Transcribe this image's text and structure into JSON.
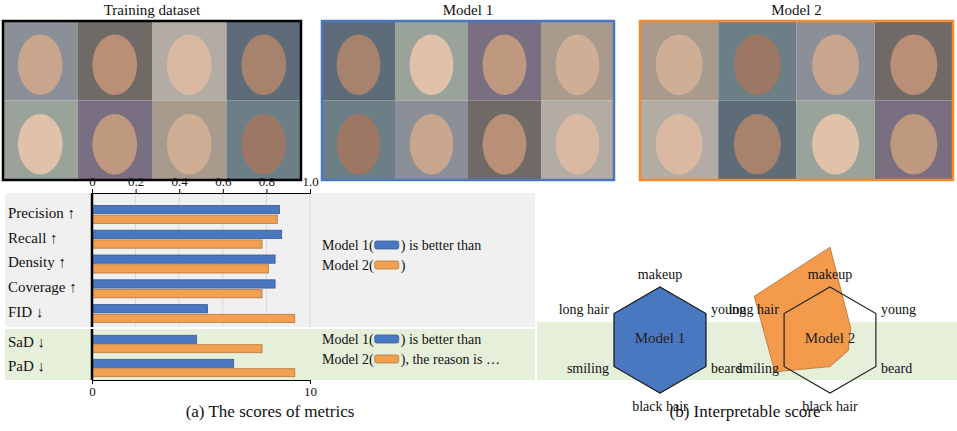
{
  "panels": [
    {
      "title": "Training dataset",
      "color": "#000000"
    },
    {
      "title": "Model 1",
      "color": "#4a78c0"
    },
    {
      "title": "Model 2",
      "color": "#f28a2e"
    }
  ],
  "chart_data": [
    {
      "type": "bar",
      "orientation": "horizontal",
      "categories": [
        "Precision ↑",
        "Recall ↑",
        "Density ↑",
        "Coverage ↑",
        "FID ↓"
      ],
      "series": [
        {
          "name": "Model 1",
          "color": "#4a78c0",
          "values": [
            0.86,
            0.87,
            0.84,
            0.84,
            0.53
          ]
        },
        {
          "name": "Model 2",
          "color": "#f0a050",
          "values": [
            0.85,
            0.78,
            0.81,
            0.78,
            0.93
          ]
        }
      ],
      "xlim": [
        0,
        1
      ],
      "xticks": [
        0,
        0.2,
        0.4,
        0.6,
        0.8,
        {
          "value": 1,
          "label": "1.0"
        }
      ],
      "grid": true,
      "annotation": [
        "(",
        ") is better than",
        ")"
      ]
    },
    {
      "type": "bar",
      "orientation": "horizontal",
      "categories": [
        "SaD ↓",
        "PaD ↓"
      ],
      "series": [
        {
          "name": "Model 1",
          "color": "#4a78c0",
          "values": [
            4.8,
            6.5
          ]
        },
        {
          "name": "Model 2",
          "color": "#f0a050",
          "values": [
            7.8,
            9.3
          ]
        }
      ],
      "xlim": [
        0,
        10
      ],
      "xticks": [
        0,
        10
      ],
      "grid": false,
      "annotation": [
        "(",
        ") is better than",
        "), the reason is …"
      ]
    }
  ],
  "radar": {
    "type": "radar",
    "axes": [
      "makeup",
      "young",
      "beard",
      "black hair",
      "smiling",
      "long hair"
    ],
    "reference": 1,
    "charts": [
      {
        "name": "Model 1",
        "color": "#4a78c0",
        "values": [
          1,
          1,
          1,
          1,
          1,
          1
        ]
      },
      {
        "name": "Model 2",
        "color": "#f39a4c",
        "values": [
          1.75,
          0.45,
          0.4,
          0.5,
          1.2,
          1.65
        ]
      }
    ]
  },
  "captions": [
    "(a) The scores of metrics",
    "(b) Interpretable score"
  ]
}
